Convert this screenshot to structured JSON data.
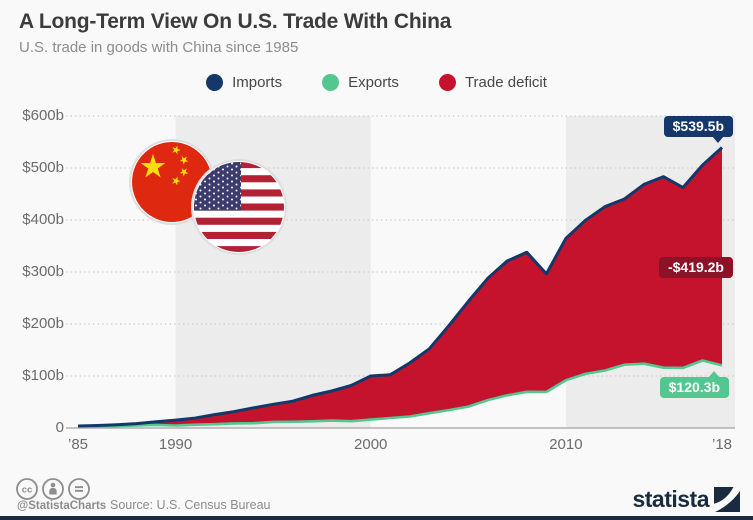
{
  "header": {
    "title": "A Long-Term View On U.S. Trade With China",
    "subtitle": "U.S. trade in goods with China since 1985"
  },
  "legend": {
    "items": [
      {
        "label": "Imports",
        "color": "#14386a"
      },
      {
        "label": "Exports",
        "color": "#53c78f"
      },
      {
        "label": "Trade deficit",
        "color": "#c5122d"
      }
    ]
  },
  "annotations": {
    "imports_value": "$539.5b",
    "deficit_value": "-$419.2b",
    "exports_value": "$120.3b"
  },
  "colors": {
    "imports": "#14386a",
    "exports": "#53c78f",
    "deficit_area": "#c5122d",
    "deficit_badge": "#8d1127",
    "band": "#ececec",
    "background": "#f9f9f9",
    "grid": "#c9c9c9",
    "axis": "#b0b0b0"
  },
  "chart_data": {
    "type": "area",
    "title": "A Long-Term View On U.S. Trade With China",
    "subtitle": "U.S. trade in goods with China since 1985",
    "unit": "billion USD",
    "x": [
      1985,
      1986,
      1987,
      1988,
      1989,
      1990,
      1991,
      1992,
      1993,
      1994,
      1995,
      1996,
      1997,
      1998,
      1999,
      2000,
      2001,
      2002,
      2003,
      2004,
      2005,
      2006,
      2007,
      2008,
      2009,
      2010,
      2011,
      2012,
      2013,
      2014,
      2015,
      2016,
      2017,
      2018
    ],
    "series": [
      {
        "name": "Imports",
        "color": "#14386a",
        "values": [
          3.9,
          4.8,
          6.3,
          8.5,
          12.0,
          15.2,
          19.0,
          25.7,
          31.5,
          38.8,
          45.6,
          51.5,
          62.6,
          71.2,
          81.8,
          100.0,
          102.3,
          125.2,
          152.4,
          196.7,
          243.5,
          287.8,
          321.4,
          337.8,
          296.4,
          364.9,
          399.4,
          425.6,
          440.4,
          468.5,
          483.2,
          462.5,
          505.5,
          539.5
        ]
      },
      {
        "name": "Exports",
        "color": "#53c78f",
        "values": [
          3.9,
          3.1,
          3.5,
          5.0,
          5.8,
          4.8,
          6.3,
          7.4,
          8.8,
          9.3,
          11.7,
          12.0,
          12.8,
          14.2,
          13.1,
          16.2,
          19.2,
          22.1,
          28.4,
          34.4,
          41.2,
          53.7,
          62.9,
          69.7,
          69.5,
          91.9,
          104.1,
          110.5,
          121.7,
          123.7,
          115.9,
          115.5,
          129.8,
          120.3
        ]
      }
    ],
    "derived_series": {
      "name": "Trade deficit",
      "definition": "Imports minus Exports, shown as red area",
      "value_2018": 419.2
    },
    "end_labels": {
      "Imports": "$539.5b",
      "Trade deficit": "-$419.2b",
      "Exports": "$120.3b"
    },
    "ylim": [
      0,
      600
    ],
    "yticks": [
      {
        "value": 600,
        "label": "$600b"
      },
      {
        "value": 500,
        "label": "$500b"
      },
      {
        "value": 400,
        "label": "$400b"
      },
      {
        "value": 300,
        "label": "$300b"
      },
      {
        "value": 200,
        "label": "$200b"
      },
      {
        "value": 100,
        "label": "$100b"
      },
      {
        "value": 0,
        "label": "0"
      }
    ],
    "xticks": [
      {
        "year": 1985,
        "label": "’85"
      },
      {
        "year": 1990,
        "label": "1990"
      },
      {
        "year": 2000,
        "label": "2000"
      },
      {
        "year": 2010,
        "label": "2010"
      },
      {
        "year": 2018,
        "label": "’18"
      }
    ],
    "bands": [
      {
        "from": 1990,
        "to": 2000
      },
      {
        "from": 2010,
        "to": null
      }
    ],
    "grid": "dotted horizontal gridlines",
    "legend_position": "top center"
  },
  "footer": {
    "handle": "@StatistaCharts",
    "source": "Source: U.S. Census Bureau",
    "brand": "statista"
  }
}
